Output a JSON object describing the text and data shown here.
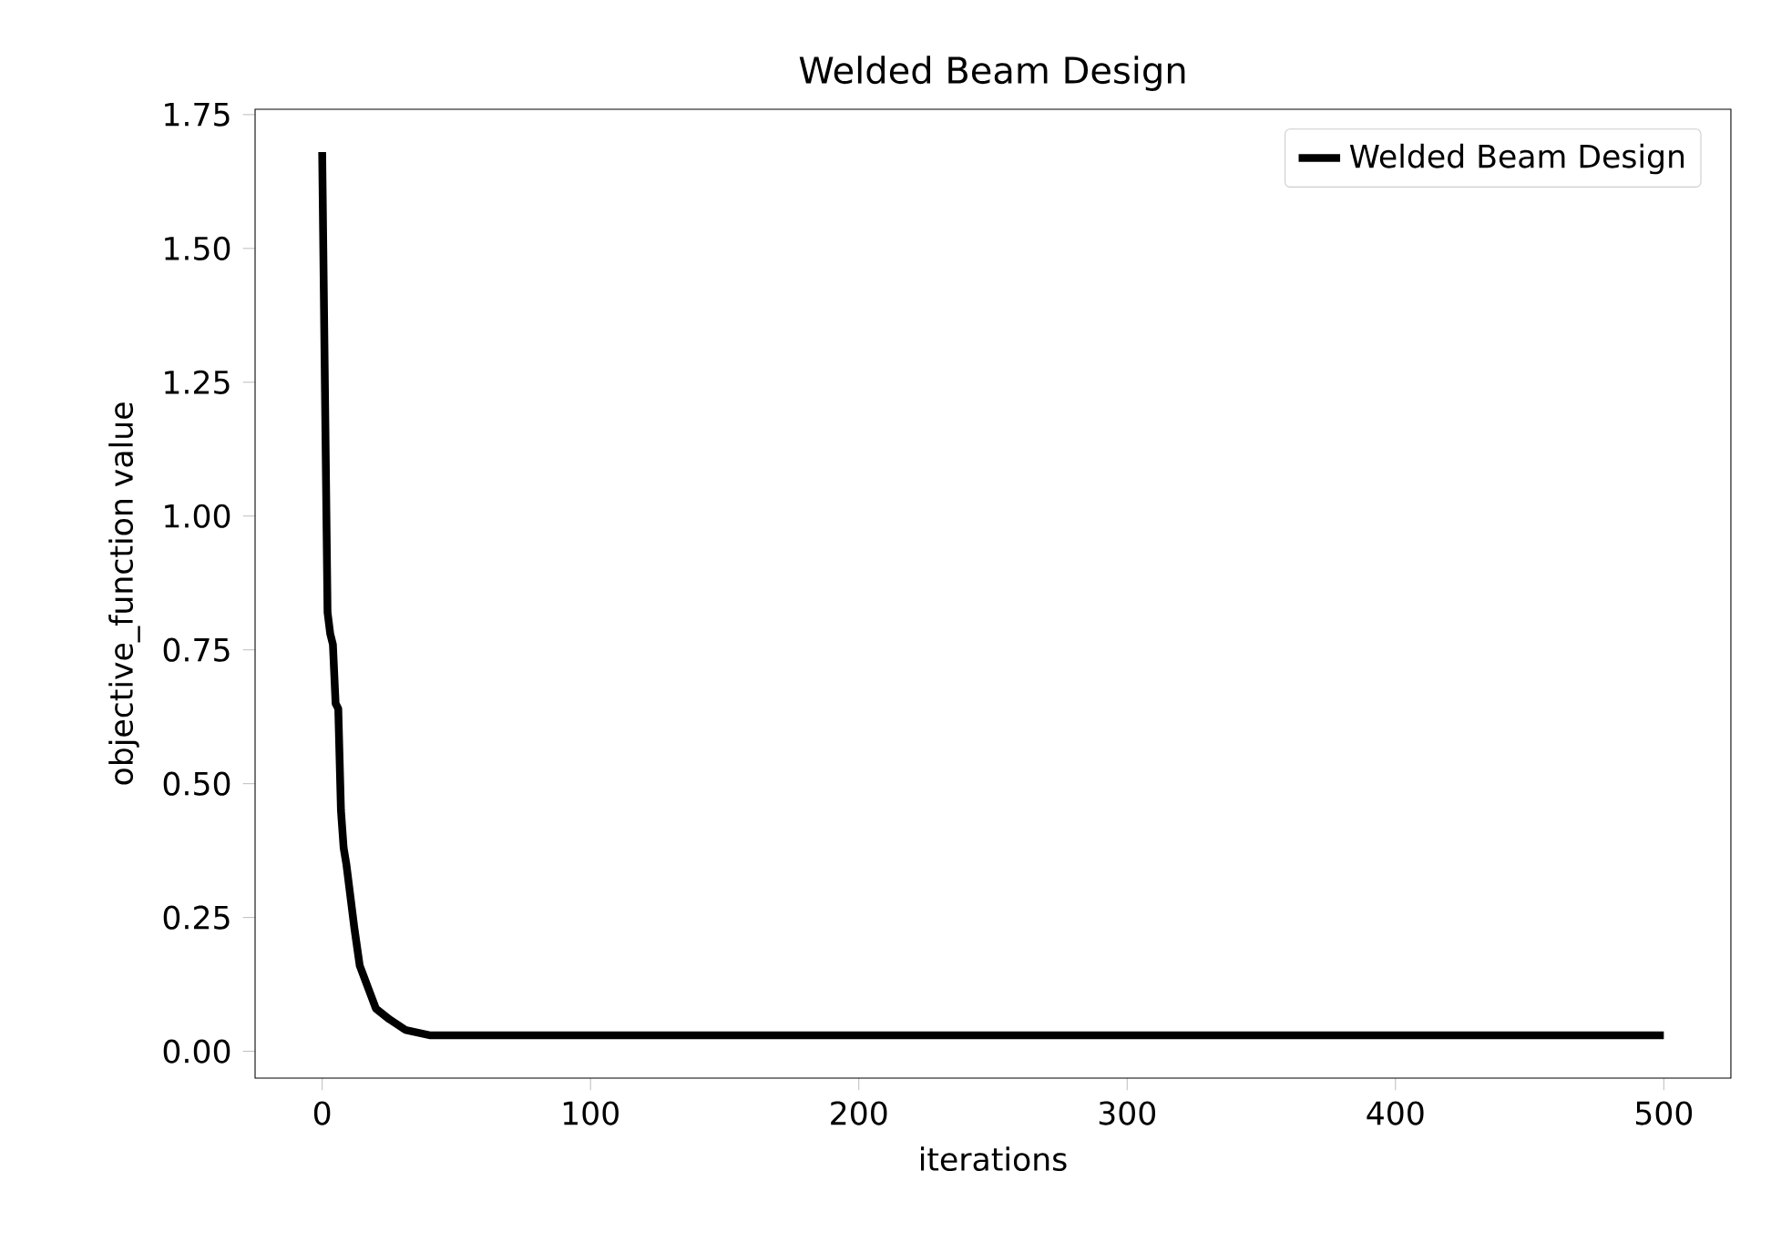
{
  "chart_data": {
    "type": "line",
    "title": "Welded Beam Design",
    "xlabel": "iterations",
    "ylabel": "objective_function value",
    "xlim": [
      -25,
      525
    ],
    "ylim": [
      -0.05,
      1.76
    ],
    "xticks": [
      0,
      100,
      200,
      300,
      400,
      500
    ],
    "yticks": [
      {
        "value": 0,
        "label": "0.00"
      },
      {
        "value": 0.25,
        "label": "0.25"
      },
      {
        "value": 0.5,
        "label": "0.50"
      },
      {
        "value": 0.75,
        "label": "0.75"
      },
      {
        "value": 1,
        "label": "1.00"
      },
      {
        "value": 1.25,
        "label": "1.25"
      },
      {
        "value": 1.5,
        "label": "1.50"
      },
      {
        "value": 1.75,
        "label": "1.75"
      }
    ],
    "legend": "top right",
    "grid": false,
    "marker": "none",
    "line_style": "solid",
    "series": [
      {
        "name": "Welded Beam Design",
        "color": "#000000",
        "x": [
          0,
          1,
          2,
          3,
          4,
          5,
          6,
          7,
          8,
          9,
          10,
          12,
          14,
          17,
          20,
          25,
          31,
          40,
          500
        ],
        "values": [
          1.68,
          1.25,
          0.82,
          0.78,
          0.76,
          0.65,
          0.64,
          0.45,
          0.38,
          0.35,
          0.31,
          0.23,
          0.16,
          0.12,
          0.08,
          0.06,
          0.04,
          0.03,
          0.03
        ]
      }
    ]
  }
}
